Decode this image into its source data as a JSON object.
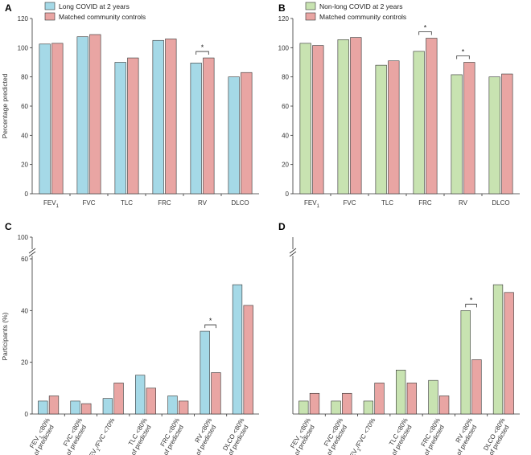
{
  "colors": {
    "long_covid": "#a5d9e7",
    "non_long_covid": "#c8e3b1",
    "controls": "#e9a5a3",
    "stroke": "#333333"
  },
  "chart_data": [
    {
      "id": "A",
      "panel_label": "A",
      "type": "bar",
      "ylabel": "Percentage predicted",
      "ylim": [
        0,
        120
      ],
      "yticks": [
        0,
        20,
        40,
        60,
        80,
        100,
        120
      ],
      "categories": [
        "FEV1",
        "FVC",
        "TLC",
        "FRC",
        "RV",
        "DLCO"
      ],
      "series": [
        {
          "name": "Long COVID at 2 years",
          "color_key": "long_covid",
          "values": [
            102.5,
            107.5,
            90,
            105,
            89.5,
            80
          ]
        },
        {
          "name": "Matched community controls",
          "color_key": "controls",
          "values": [
            103,
            109,
            93,
            106,
            93,
            83
          ]
        }
      ],
      "significance": [
        {
          "category": "RV",
          "label": "*"
        }
      ]
    },
    {
      "id": "B",
      "panel_label": "B",
      "type": "bar",
      "ylabel": "",
      "ylim": [
        0,
        120
      ],
      "yticks": [
        0,
        20,
        40,
        60,
        80,
        100,
        120
      ],
      "categories": [
        "FEV1",
        "FVC",
        "TLC",
        "FRC",
        "RV",
        "DLCO"
      ],
      "series": [
        {
          "name": "Non-long COVID at 2 years",
          "color_key": "non_long_covid",
          "values": [
            103,
            105.5,
            88,
            97.5,
            81.5,
            80
          ]
        },
        {
          "name": "Matched community controls",
          "color_key": "controls",
          "values": [
            101.5,
            107,
            91,
            106.5,
            90,
            82
          ]
        }
      ],
      "significance": [
        {
          "category": "FRC",
          "label": "*"
        },
        {
          "category": "RV",
          "label": "*"
        }
      ]
    },
    {
      "id": "C",
      "panel_label": "C",
      "type": "bar",
      "ylabel": "Participants (%)",
      "ylim": [
        0,
        60
      ],
      "yticks": [
        0,
        20,
        40,
        60
      ],
      "ybreak_top": 100,
      "categories": [
        [
          "FEV1 <80%",
          "of predicted"
        ],
        [
          "FVC <80%",
          "of predicted"
        ],
        [
          "FEV1/FVC <70%"
        ],
        [
          "TLC <80%",
          "of predicted"
        ],
        [
          "FRC <80%",
          "of predicted"
        ],
        [
          "RV <80%",
          "of predicted"
        ],
        [
          "DLCO <80%",
          "of predicted"
        ]
      ],
      "series": [
        {
          "name": "Long COVID at 2 years",
          "color_key": "long_covid",
          "values": [
            5,
            5,
            6,
            15,
            7,
            32,
            50
          ]
        },
        {
          "name": "Matched community controls",
          "color_key": "controls",
          "values": [
            7,
            4,
            12,
            10,
            5,
            16,
            42
          ]
        }
      ],
      "significance": [
        {
          "category_index": 5,
          "label": "*"
        }
      ]
    },
    {
      "id": "D",
      "panel_label": "D",
      "type": "bar",
      "ylabel": "",
      "ylim": [
        0,
        60
      ],
      "yticks": [],
      "ybreak_top": 100,
      "categories": [
        [
          "FEV1 <80%",
          "of predicted"
        ],
        [
          "FVC <80%",
          "of predicted"
        ],
        [
          "FEV1/FVC <70%"
        ],
        [
          "TLC <80%",
          "of predicted"
        ],
        [
          "FRC <80%",
          "of predicted"
        ],
        [
          "RV <80%",
          "of predicted"
        ],
        [
          "DLCO <80%",
          "of predicted"
        ]
      ],
      "series": [
        {
          "name": "Non-long COVID at 2 years",
          "color_key": "non_long_covid",
          "values": [
            5,
            5,
            5,
            17,
            13,
            40,
            50
          ]
        },
        {
          "name": "Matched community controls",
          "color_key": "controls",
          "values": [
            8,
            8,
            12,
            12,
            7,
            21,
            47
          ]
        }
      ],
      "significance": [
        {
          "category_index": 5,
          "label": "*"
        }
      ]
    }
  ]
}
